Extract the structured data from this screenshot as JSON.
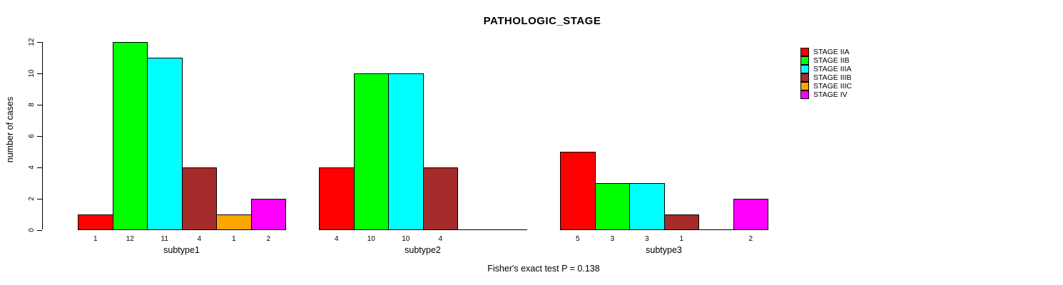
{
  "title": "PATHOLOGIC_STAGE",
  "ylabel": "number of cases",
  "caption": "Fisher's exact test P = 0.138",
  "colors": {
    "background": "#ffffff",
    "axis": "#000000",
    "bar_border": "#000000"
  },
  "chart_data": {
    "type": "bar",
    "grouped": true,
    "title": "PATHOLOGIC_STAGE",
    "xlabel": "",
    "ylabel": "number of cases",
    "categories": [
      "subtype1",
      "subtype2",
      "subtype3"
    ],
    "series": [
      {
        "name": "STAGE IIA",
        "color": "#ff0000",
        "values": [
          1,
          4,
          5
        ]
      },
      {
        "name": "STAGE IIB",
        "color": "#00ff00",
        "values": [
          12,
          10,
          3
        ]
      },
      {
        "name": "STAGE IIIA",
        "color": "#00ffff",
        "values": [
          11,
          10,
          3
        ]
      },
      {
        "name": "STAGE IIIB",
        "color": "#a52a2a",
        "values": [
          4,
          4,
          1
        ]
      },
      {
        "name": "STAGE IIIC",
        "color": "#ffa500",
        "values": [
          1,
          0,
          0
        ]
      },
      {
        "name": "STAGE IV",
        "color": "#ff00ff",
        "values": [
          2,
          0,
          2
        ]
      }
    ],
    "ylim": [
      0,
      12
    ],
    "yticks": [
      0,
      2,
      4,
      6,
      8,
      10,
      12
    ],
    "bar_value_labels_shown": true,
    "zero_bars_hidden": true,
    "grid": false,
    "legend_position": "right",
    "annotation": "Fisher's exact test P = 0.138"
  }
}
